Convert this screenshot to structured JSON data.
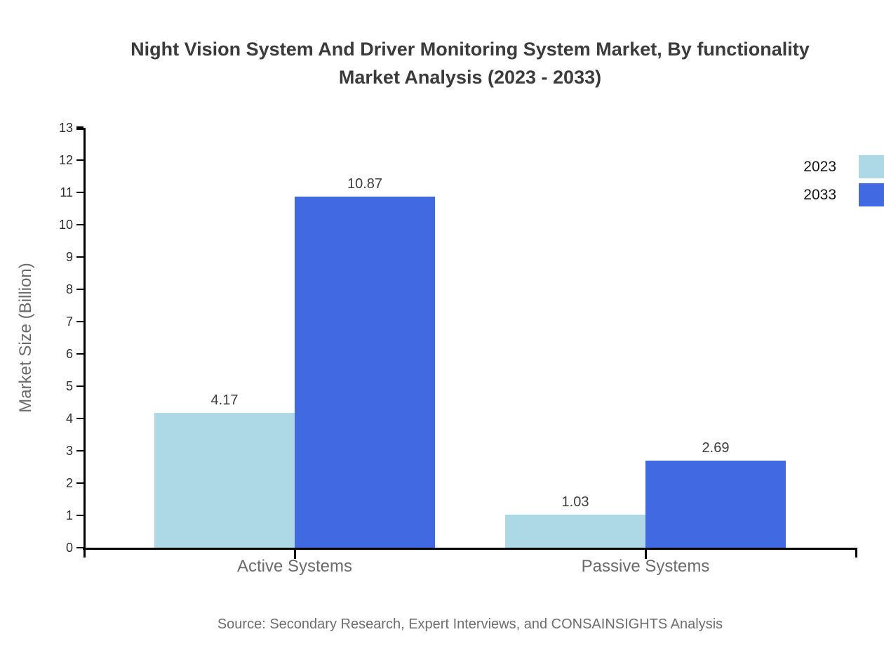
{
  "title": {
    "line1": "Night Vision System And Driver Monitoring System Market, By functionality",
    "line2": "Market Analysis (2023 - 2033)"
  },
  "y_axis_label": "Market Size (Billion)",
  "source_note": "Source: Secondary Research, Expert Interviews, and CONSAINSIGHTS Analysis",
  "chart_data": {
    "type": "bar",
    "title": "Night Vision System And Driver Monitoring System Market, By functionality Market Analysis (2023 - 2033)",
    "categories": [
      "Active Systems",
      "Passive Systems"
    ],
    "series": [
      {
        "name": "2023",
        "values": [
          4.17,
          1.03
        ],
        "color": "#ADD8E6"
      },
      {
        "name": "2033",
        "values": [
          10.87,
          2.69
        ],
        "color": "#4169E1"
      }
    ],
    "value_labels": [
      [
        "4.17",
        "1.03"
      ],
      [
        "10.87",
        "2.69"
      ]
    ],
    "xlabel": "",
    "ylabel": "Market Size (Billion)",
    "ylim": [
      0,
      13
    ],
    "ytick_step": 1,
    "grid": false,
    "legend_position": "top-right",
    "axis_color": "#000000",
    "tick_label_color": "#2e2e2e",
    "value_label_color": "#3d3d3d",
    "category_label_color": "#6b6b6b"
  }
}
